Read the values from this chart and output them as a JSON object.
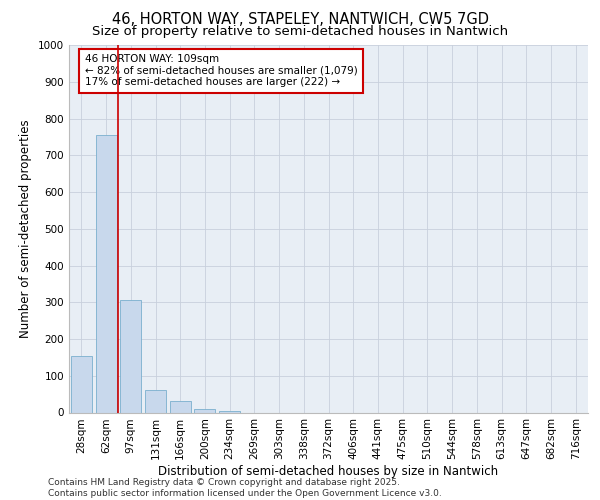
{
  "title1": "46, HORTON WAY, STAPELEY, NANTWICH, CW5 7GD",
  "title2": "Size of property relative to semi-detached houses in Nantwich",
  "xlabel": "Distribution of semi-detached houses by size in Nantwich",
  "ylabel": "Number of semi-detached properties",
  "categories": [
    "28sqm",
    "62sqm",
    "97sqm",
    "131sqm",
    "166sqm",
    "200sqm",
    "234sqm",
    "269sqm",
    "303sqm",
    "338sqm",
    "372sqm",
    "406sqm",
    "441sqm",
    "475sqm",
    "510sqm",
    "544sqm",
    "578sqm",
    "613sqm",
    "647sqm",
    "682sqm",
    "716sqm"
  ],
  "values": [
    155,
    755,
    305,
    60,
    30,
    10,
    5,
    0,
    0,
    0,
    0,
    0,
    0,
    0,
    0,
    0,
    0,
    0,
    0,
    0,
    0
  ],
  "bar_color": "#c8d8ec",
  "bar_edge_color": "#7aafce",
  "vline_x": 1.5,
  "vline_color": "#cc0000",
  "annotation_text": "46 HORTON WAY: 109sqm\n← 82% of semi-detached houses are smaller (1,079)\n17% of semi-detached houses are larger (222) →",
  "annotation_box_color": "#ffffff",
  "annotation_box_edge": "#cc0000",
  "ylim": [
    0,
    1000
  ],
  "yticks": [
    0,
    100,
    200,
    300,
    400,
    500,
    600,
    700,
    800,
    900,
    1000
  ],
  "grid_color": "#c8d0dc",
  "bg_color": "#e8eef5",
  "footer": "Contains HM Land Registry data © Crown copyright and database right 2025.\nContains public sector information licensed under the Open Government Licence v3.0.",
  "title_fontsize": 10.5,
  "subtitle_fontsize": 9.5,
  "axis_label_fontsize": 8.5,
  "tick_fontsize": 7.5,
  "footer_fontsize": 6.5,
  "annot_fontsize": 7.5
}
